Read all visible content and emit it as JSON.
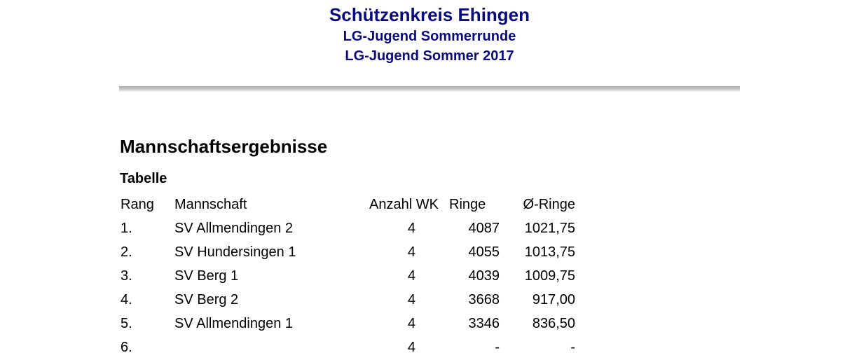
{
  "header": {
    "title": "Schützenkreis Ehingen",
    "subtitle1": "LG-Jugend Sommerrunde",
    "subtitle2": "LG-Jugend Sommer 2017"
  },
  "section": {
    "title": "Mannschaftsergebnisse",
    "table_title": "Tabelle"
  },
  "table": {
    "columns": [
      "Rang",
      "Mannschaft",
      "Anzahl WK",
      "Ringe",
      "Ø-Ringe"
    ],
    "rows": [
      [
        "1.",
        "SV Allmendingen 2",
        "4",
        "4087",
        "1021,75"
      ],
      [
        "2.",
        "SV Hundersingen 1",
        "4",
        "4055",
        "1013,75"
      ],
      [
        "3.",
        "SV Berg 1",
        "4",
        "4039",
        "1009,75"
      ],
      [
        "4.",
        "SV Berg 2",
        "4",
        "3668",
        "917,00"
      ],
      [
        "5.",
        "SV Allmendingen 1",
        "4",
        "3346",
        "836,50"
      ],
      [
        "6.",
        "",
        "4",
        "-",
        "-"
      ]
    ]
  },
  "colors": {
    "header_text": "#0a0a80",
    "body_text": "#000000",
    "rule": "#bcbcbc"
  }
}
